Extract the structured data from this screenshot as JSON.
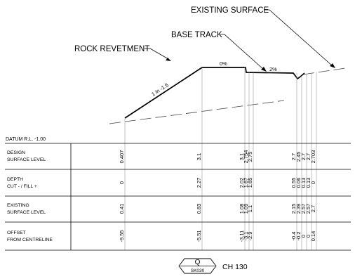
{
  "labels": {
    "existing_surface": "EXISTING SURFACE",
    "base_track": "BASE TRACK",
    "rock_revetment": "ROCK REVETMENT",
    "slope": "1 in -1.5",
    "grade_flat": "0%",
    "grade_track": "2%",
    "datum": "DATUM R.L. -1.00"
  },
  "rows": [
    {
      "line1": "DESIGN",
      "line2": "SURFACE LEVEL",
      "values": [
        "0.407",
        "3.1",
        "3.1",
        "2.754",
        "2.75",
        "2.7",
        "2.45",
        "2.7",
        "2.7",
        "2.703"
      ]
    },
    {
      "line1": "DEPTH",
      "line2": "CUT - / FILL +",
      "values": [
        "0",
        "2.27",
        "2.02",
        "1.67",
        "1.65",
        "0.55",
        "0.06",
        "0.13",
        "0.13",
        "0"
      ]
    },
    {
      "line1": "EXISTING",
      "line2": "SURFACE LEVEL",
      "values": [
        "0.41",
        "0.83",
        "1.08",
        "1.09",
        "1.1",
        "2.15",
        "2.39",
        "2.57",
        "2.57",
        "2.7"
      ]
    },
    {
      "line1": "OFFSET",
      "line2": "FROM CENTRELINE",
      "values": [
        "-9.55",
        "-5.51",
        "-3.11",
        "-3.1",
        "-2.9",
        "-0.4",
        "-0.2",
        "0",
        "0",
        "0.14"
      ]
    }
  ],
  "section": {
    "letter": "Q",
    "sheet": "SK030",
    "chainage": "CH 130"
  }
}
